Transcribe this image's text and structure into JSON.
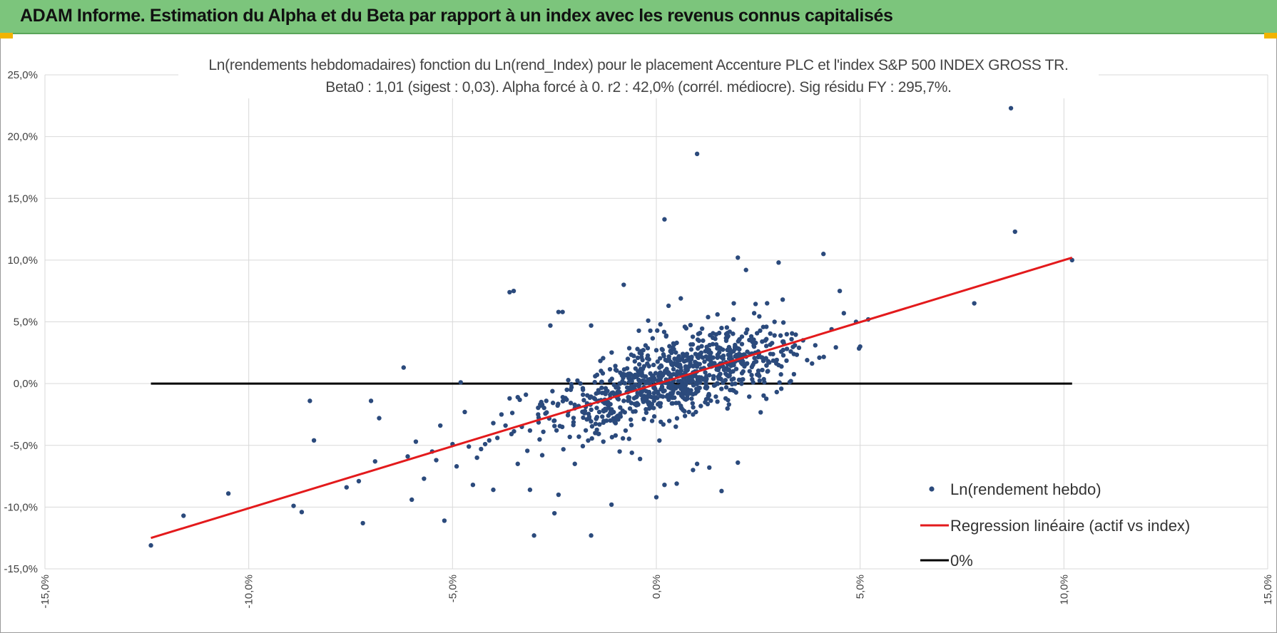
{
  "header": {
    "title": "ADAM Informe. Estimation du Alpha et du Beta par rapport à un index avec les revenus connus capitalisés"
  },
  "colors": {
    "header_bg": "#7cc57c",
    "corner_accent": "#f2b400",
    "points": "#2b4a7c",
    "regression": "#e31a1c",
    "zero_line": "#000000",
    "grid": "#d9d9d9"
  },
  "chart_data": {
    "type": "scatter",
    "title_line1": "Ln(rendements hebdomadaires) fonction du Ln(rend_Index) pour le placement Accenture PLC et l'index S&P 500 INDEX GROSS TR.",
    "title_line2": "Beta0 : 1,01  (sigest : 0,03).  Alpha forcé à 0. r2 : 42,0% (corrél. médiocre). Sig résidu FY : 295,7%.",
    "xlim": [
      -15,
      15
    ],
    "ylim": [
      -15,
      25
    ],
    "x_ticks": [
      -15,
      -10,
      -5,
      0,
      5,
      10,
      15
    ],
    "y_ticks": [
      -15,
      -10,
      -5,
      0,
      5,
      10,
      15,
      20,
      25
    ],
    "x_tick_labels": [
      "-15,0%",
      "-10,0%",
      "-5,0%",
      "0,0%",
      "5,0%",
      "10,0%",
      "15,0%"
    ],
    "y_tick_labels": [
      "-15,0%",
      "-10,0%",
      "-5,0%",
      "0,0%",
      "5,0%",
      "10,0%",
      "15,0%",
      "20,0%",
      "25,0%"
    ],
    "grid": true,
    "legend_position": "bottom-right",
    "series": [
      {
        "name": "Ln(rendement hebdo)",
        "kind": "points",
        "x": [
          -12.4,
          -11.6,
          -10.5,
          -8.9,
          -8.7,
          -8.5,
          -8.4,
          -7.6,
          -7.3,
          -7.2,
          -7.0,
          -6.8,
          -6.9,
          -6.2,
          -6.0,
          -5.9,
          -5.7,
          -5.5,
          -5.3,
          -5.2,
          -5.0,
          -4.9,
          -4.8,
          -4.7,
          -4.5,
          -4.4,
          -4.3,
          -4.2,
          -4.1,
          -4.0,
          -3.9,
          -3.8,
          -3.7,
          -3.6,
          -3.5,
          -3.4,
          -3.3,
          -3.2,
          -3.1,
          -3.0,
          -2.9,
          -2.8,
          -2.7,
          -2.6,
          -2.5,
          -2.4,
          -2.3,
          -2.2,
          -2.1,
          -2.0,
          -1.9,
          -1.8,
          -1.7,
          -1.6,
          -1.5,
          -1.4,
          -1.3,
          -1.2,
          -1.1,
          -1.0,
          -0.9,
          -0.8,
          -0.7,
          -0.6,
          -0.5,
          -0.4,
          -0.3,
          -0.2,
          -0.1,
          0.0,
          0.1,
          0.2,
          0.3,
          0.4,
          0.5,
          0.6,
          0.7,
          0.8,
          0.9,
          1.0,
          1.1,
          1.2,
          1.3,
          1.4,
          1.5,
          1.6,
          1.7,
          1.8,
          1.9,
          2.0,
          2.1,
          2.2,
          2.3,
          2.4,
          2.5,
          2.6,
          2.7,
          2.8,
          2.9,
          3.0,
          3.1,
          3.2,
          3.3,
          3.4,
          3.5,
          3.7,
          3.9,
          4.1,
          4.3,
          4.5,
          4.6,
          4.9,
          5.0,
          5.2,
          7.8,
          8.7,
          8.8,
          10.2,
          1.0,
          0.3,
          2.0,
          -3.6,
          -2.4,
          -1.6,
          -2.8,
          -3.1,
          -0.8,
          -0.2,
          0.6,
          -0.4,
          1.5,
          1.9,
          2.4,
          3.1,
          -1.0,
          -0.6,
          0.9,
          1.3,
          0.2,
          -1.3,
          -2.0,
          0.4,
          0.8,
          1.6,
          2.2,
          2.7,
          -0.7,
          -1.8,
          -2.5,
          -3.4,
          -4.0,
          0.0,
          0.5,
          1.1,
          1.8,
          2.9,
          3.6,
          -0.3,
          -1.1,
          -1.5,
          0.7,
          1.2,
          2.1,
          2.6,
          3.3,
          4.0,
          -4.6,
          -5.4,
          -6.1,
          0.9,
          1.7,
          0.1,
          -0.9,
          2.5,
          3.0,
          1.4,
          0.6
        ],
        "y": [
          -13.1,
          -10.7,
          -8.9,
          -9.9,
          -10.4,
          -1.4,
          -4.6,
          -8.4,
          -7.9,
          -11.3,
          -1.4,
          -2.8,
          -6.3,
          1.3,
          -9.4,
          -4.7,
          -7.7,
          -5.5,
          -3.4,
          -11.1,
          -4.9,
          -6.7,
          0.1,
          -2.3,
          -8.2,
          -6.0,
          -5.3,
          -4.9,
          -4.6,
          -3.2,
          -4.4,
          -2.5,
          -3.4,
          -1.2,
          7.5,
          -1.1,
          -3.5,
          -0.9,
          -3.8,
          -12.3,
          -2.5,
          -1.7,
          -1.4,
          4.7,
          -10.5,
          -9.0,
          5.8,
          -1.3,
          -0.5,
          -2.0,
          -4.3,
          -0.9,
          -1.6,
          -12.3,
          -4.0,
          -2.3,
          -1.4,
          -0.6,
          -9.8,
          -3.2,
          -0.7,
          -1.4,
          -0.7,
          0.2,
          -0.1,
          0.0,
          -1.0,
          0.3,
          0.6,
          -9.2,
          0.9,
          13.3,
          -0.3,
          1.5,
          -8.1,
          1.3,
          0.7,
          2.1,
          0.9,
          18.6,
          1.2,
          0.3,
          1.5,
          1.6,
          2.1,
          -8.7,
          0.8,
          2.2,
          1.5,
          10.2,
          3.2,
          9.2,
          2.4,
          1.7,
          2.6,
          2.1,
          3.6,
          2.4,
          3.9,
          9.8,
          3.4,
          4.0,
          2.6,
          3.1,
          2.9,
          1.9,
          3.1,
          10.5,
          4.4,
          7.5,
          5.7,
          5.0,
          3.0,
          5.2,
          6.5,
          22.3,
          12.3,
          10.0,
          -6.5,
          6.3,
          -6.4,
          7.4,
          5.8,
          4.7,
          -5.8,
          -8.6,
          8.0,
          5.1,
          6.9,
          -6.1,
          5.6,
          6.5,
          5.7,
          6.8,
          -4.2,
          -5.6,
          -7.0,
          -6.8,
          -8.2,
          -4.7,
          -6.5,
          -1.6,
          -2.3,
          4.5,
          4.1,
          4.6,
          2.0,
          -0.5,
          -3.0,
          -6.5,
          -8.6,
          2.7,
          3.3,
          2.5,
          4.2,
          5.0,
          3.5,
          1.4,
          -2.4,
          0.6,
          -0.8,
          0.9,
          3.8,
          1.1,
          0.2,
          2.1,
          -5.1,
          -6.2,
          -5.9,
          -2.5,
          -1.2,
          4.8,
          -5.5,
          0.8,
          1.5,
          0.4,
          -1.8
        ]
      },
      {
        "name": "Regression linéaire (actif vs index)",
        "kind": "line",
        "x": [
          -12.4,
          10.2
        ],
        "y": [
          -12.5,
          10.2
        ]
      },
      {
        "name": "0%",
        "kind": "line",
        "x": [
          -12.4,
          10.2
        ],
        "y": [
          0,
          0
        ]
      }
    ]
  }
}
